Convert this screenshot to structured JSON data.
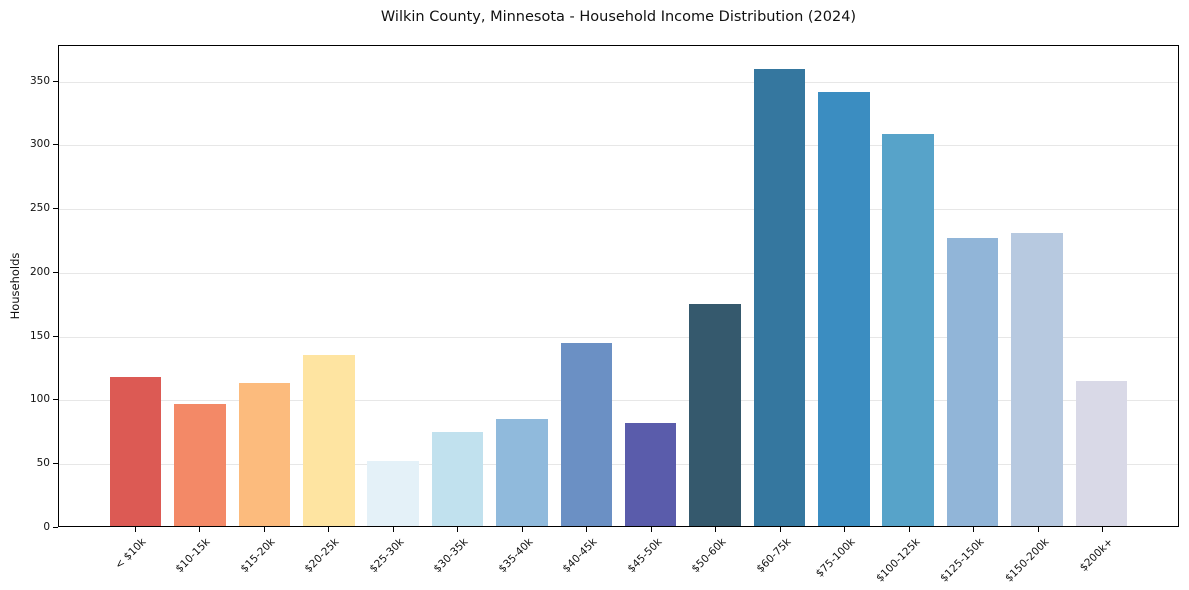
{
  "chart_data": {
    "type": "bar",
    "title": "Wilkin County, Minnesota - Household Income Distribution (2024)",
    "xlabel": "",
    "ylabel": "Households",
    "categories": [
      "< $10k",
      "$10-15k",
      "$15-20k",
      "$20-25k",
      "$25-30k",
      "$30-35k",
      "$35-40k",
      "$40-45k",
      "$45-50k",
      "$50-60k",
      "$60-75k",
      "$75-100k",
      "$100-125k",
      "$125-150k",
      "$150-200k",
      "$200k+"
    ],
    "values": [
      117,
      96,
      113,
      135,
      51,
      74,
      84,
      144,
      81,
      175,
      360,
      342,
      309,
      227,
      231,
      114
    ],
    "bar_colors": [
      "#dc5a54",
      "#f38967",
      "#fcbb7d",
      "#fee4a1",
      "#e4f1f8",
      "#c1e1ee",
      "#90badc",
      "#6b90c4",
      "#5a5cab",
      "#35596d",
      "#35779f",
      "#3b8dc1",
      "#57a3c9",
      "#91b5d8",
      "#b7c9e0",
      "#d9d9e7"
    ],
    "yticks": [
      0,
      50,
      100,
      150,
      200,
      250,
      300,
      350
    ],
    "ylim": [
      0,
      378
    ],
    "grid": "horizontal",
    "gridline_color": "#e7e7e7",
    "spine_color": "#000000",
    "text_color": "#111111",
    "legend": "none"
  }
}
